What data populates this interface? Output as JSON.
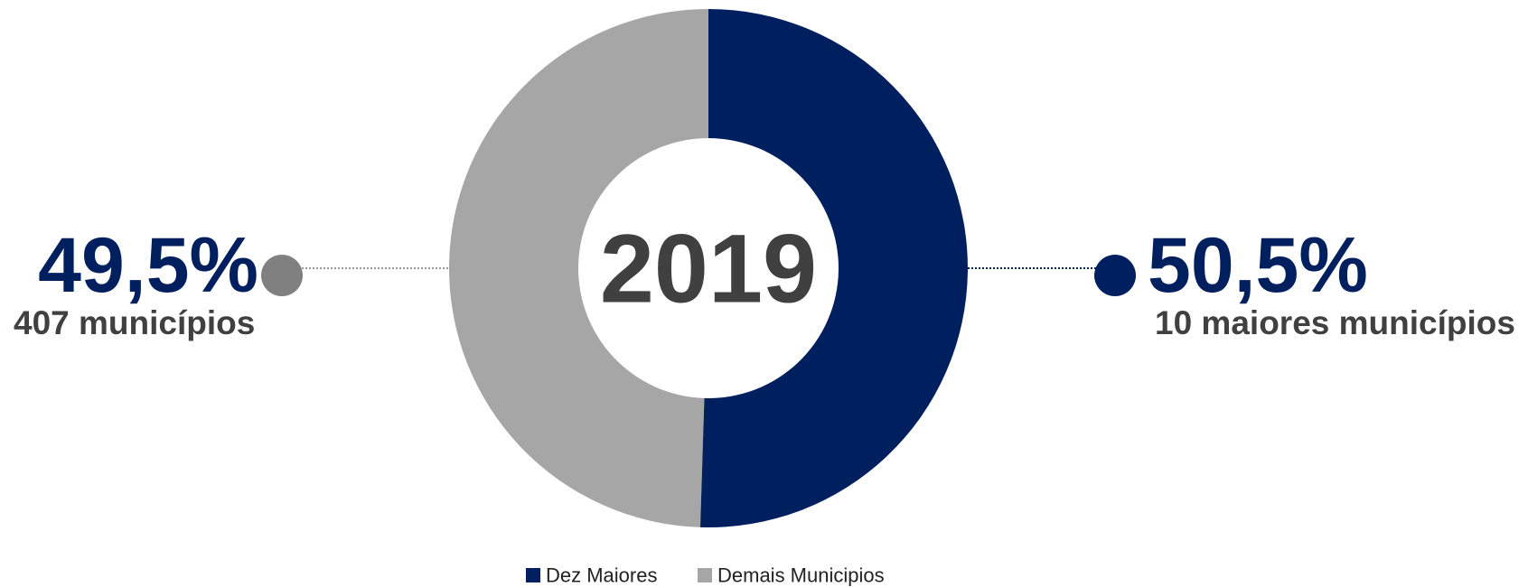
{
  "chart_data": {
    "type": "pie",
    "categories": [
      "Dez Maiores",
      "Demais Municipios"
    ],
    "values": [
      50.5,
      49.5
    ],
    "value_labels": [
      "50,5%",
      "49,5%"
    ],
    "colors": [
      "#001f5f",
      "#a6a6a6"
    ],
    "annotations": [
      "10 maiores municípios",
      "407 municípios"
    ],
    "center_label": "2019",
    "legend": "bottom"
  }
}
